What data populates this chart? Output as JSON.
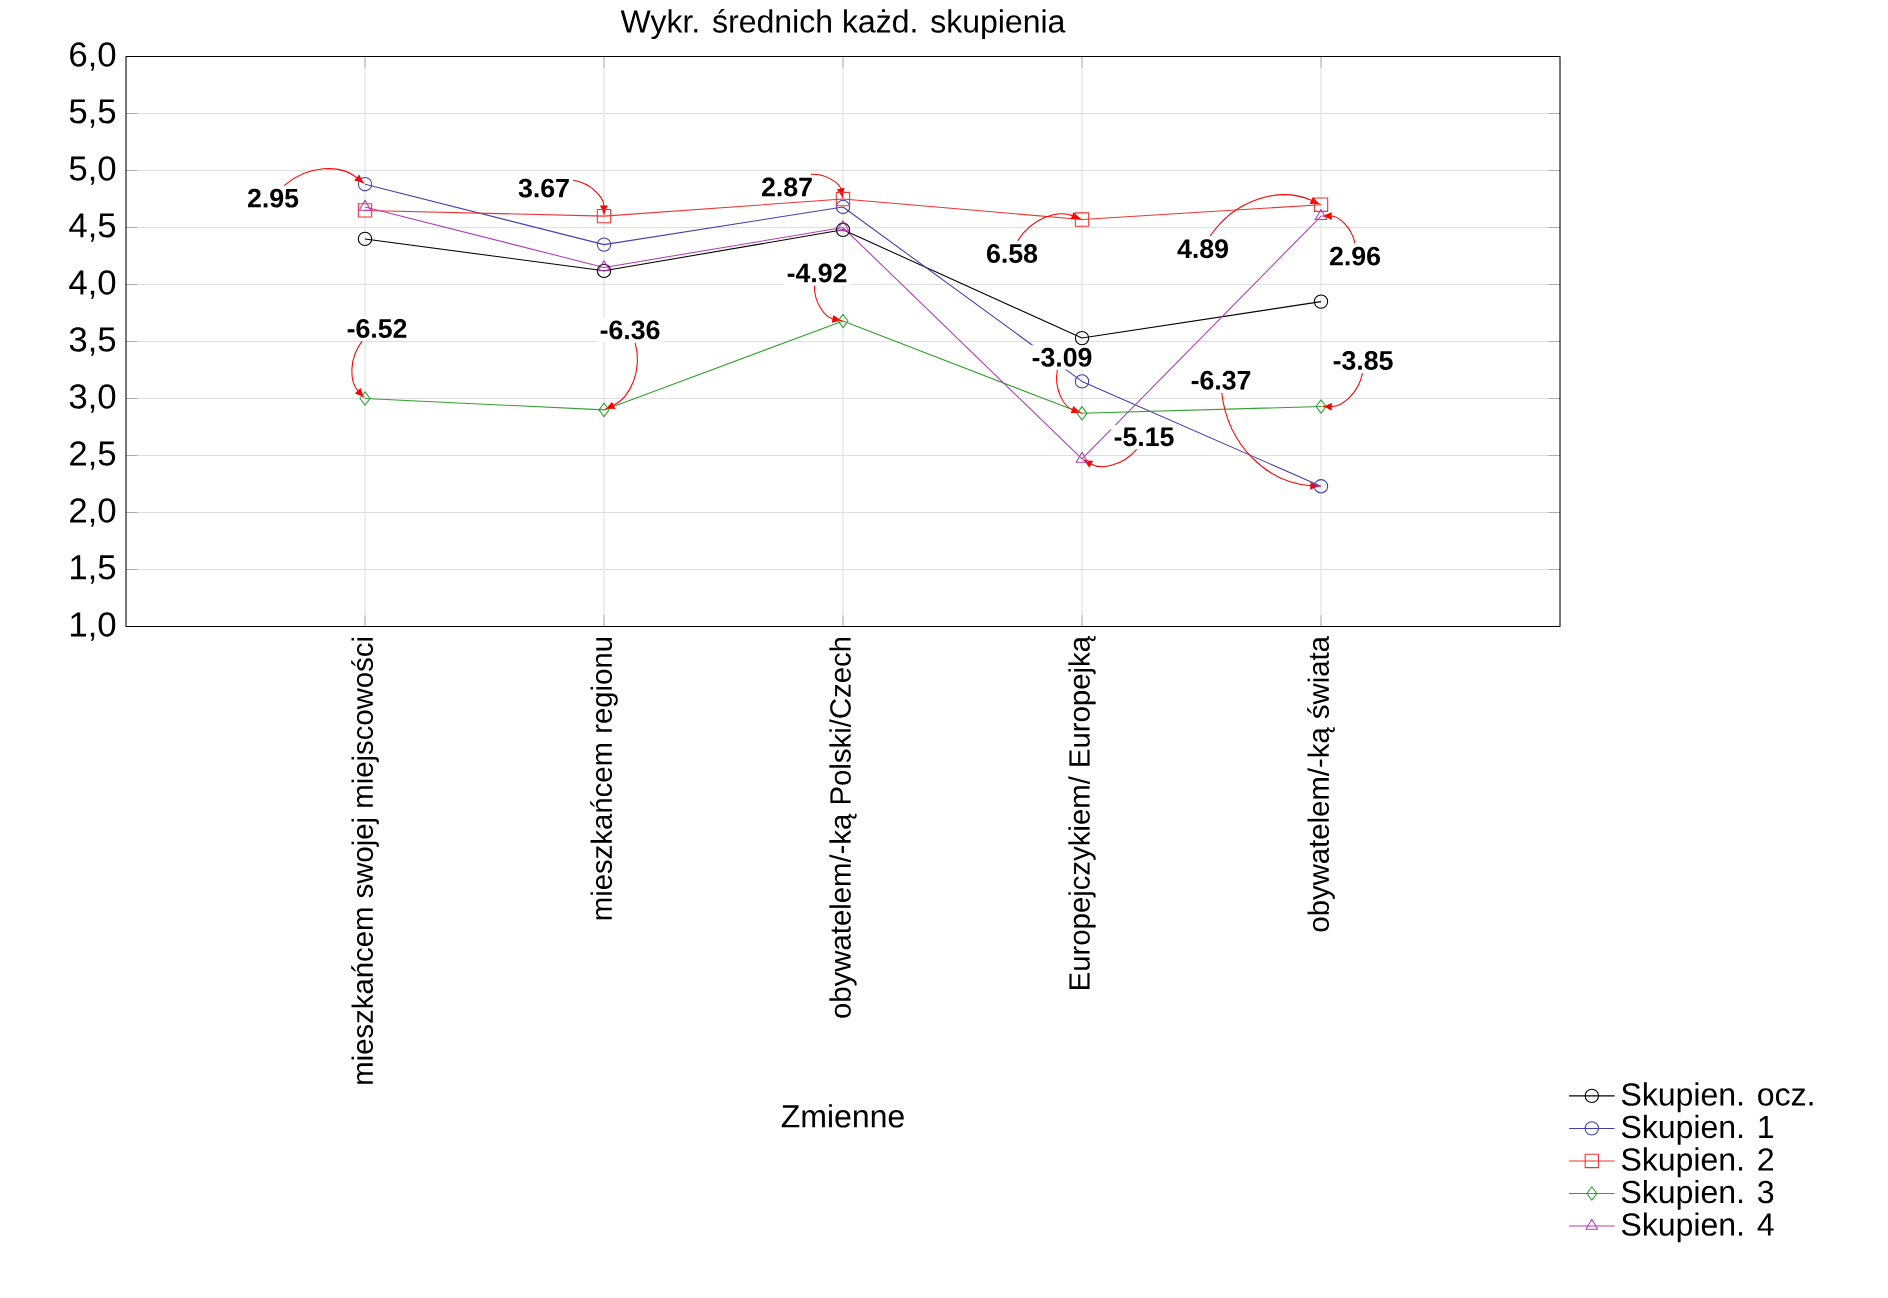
{
  "chart_data": {
    "type": "line",
    "title": "Wykr. średnich każd. skupienia",
    "xlabel": "Zmienne",
    "categories": [
      "mieszkańcem swojej miejscowości",
      "mieszkańcem regionu",
      "obywatelem/-ką Polski/Czech",
      "Europejczykiem/ Europejką",
      "obywatelem/-ką świata"
    ],
    "ylim": [
      1,
      6
    ],
    "yticks": [
      {
        "value": 1,
        "label": "1,0"
      },
      {
        "value": 1.5,
        "label": "1,5"
      },
      {
        "value": 2,
        "label": "2,0"
      },
      {
        "value": 2.5,
        "label": "2,5"
      },
      {
        "value": 3,
        "label": "3,0"
      },
      {
        "value": 3.5,
        "label": "3,5"
      },
      {
        "value": 4,
        "label": "4,0"
      },
      {
        "value": 4.5,
        "label": "4,5"
      },
      {
        "value": 5,
        "label": "5,0"
      },
      {
        "value": 5.5,
        "label": "5,5"
      },
      {
        "value": 6,
        "label": "6,0"
      }
    ],
    "grid": true,
    "legend": "bottom right",
    "series": [
      {
        "name": "Skupien. ocz.",
        "color": "#000000",
        "marker": "circle",
        "values": [
          4.4,
          4.12,
          4.48,
          3.53,
          3.85
        ]
      },
      {
        "name": "Skupien. 1",
        "color": "#4040b0",
        "marker": "circle",
        "values": [
          4.88,
          4.35,
          4.68,
          3.15,
          2.23
        ]
      },
      {
        "name": "Skupien. 2",
        "color": "#ee3333",
        "marker": "square",
        "values": [
          4.65,
          4.6,
          4.75,
          4.57,
          4.7
        ]
      },
      {
        "name": "Skupien. 3",
        "color": "#33a033",
        "marker": "diamond",
        "values": [
          3.0,
          2.9,
          3.68,
          2.87,
          2.93
        ]
      },
      {
        "name": "Skupien. 4",
        "color": "#b040b0",
        "marker": "triangle",
        "values": [
          4.68,
          4.15,
          4.5,
          2.47,
          4.6
        ]
      }
    ],
    "annotations": [
      {
        "text": "2.95",
        "x": "mieszkańcem swojej miejscowości",
        "y": 4.88
      },
      {
        "text": "-6.52",
        "x": "mieszkańcem swojej miejscowości",
        "y": 3.0
      },
      {
        "text": "3.67",
        "x": "mieszkańcem regionu",
        "y": 4.6
      },
      {
        "text": "-6.36",
        "x": "mieszkańcem regionu",
        "y": 2.9
      },
      {
        "text": "2.87",
        "x": "obywatelem/-ką Polski/Czech",
        "y": 4.75
      },
      {
        "text": "-4.92",
        "x": "obywatelem/-ką Polski/Czech",
        "y": 3.68
      },
      {
        "text": "6.58",
        "x": "Europejczykiem/ Europejką",
        "y": 4.57
      },
      {
        "text": "-3.09",
        "x": "Europejczykiem/ Europejką",
        "y": 2.87
      },
      {
        "text": "-5.15",
        "x": "Europejczykiem/ Europejką",
        "y": 2.47
      },
      {
        "text": "4.89",
        "x": "obywatelem/-ką świata",
        "y": 4.7
      },
      {
        "text": "2.96",
        "x": "obywatelem/-ką świata",
        "y": 4.6
      },
      {
        "text": "-6.37",
        "x": "obywatelem/-ką świata",
        "y": 2.23
      },
      {
        "text": "-3.85",
        "x": "obywatelem/-ką świata",
        "y": 2.93
      }
    ]
  }
}
